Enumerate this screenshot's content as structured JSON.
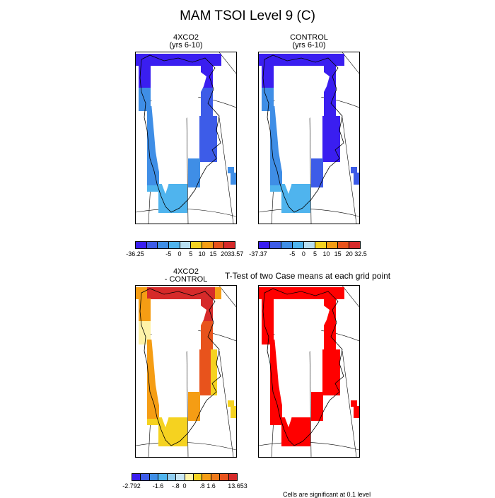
{
  "title": "MAM TSOI Level 9 (C)",
  "panels": {
    "p1": {
      "title_line1": "4XCO2",
      "title_line2": "(yrs 6-10)"
    },
    "p2": {
      "title_line1": "CONTROL",
      "title_line2": "(yrs 6-10)"
    },
    "p3": {
      "title_line1": "4XCO2",
      "title_line2": "- CONTROL"
    },
    "p4": {
      "title": "T-Test of two Case means at each grid point"
    }
  },
  "colorbars": {
    "cb1": {
      "labels": [
        "-36.25",
        "-5",
        "0",
        "5",
        "10",
        "15",
        "20",
        "33.57"
      ]
    },
    "cb2": {
      "labels": [
        "-37.37",
        "-5",
        "0",
        "5",
        "10",
        "15",
        "20",
        "32.5"
      ]
    },
    "cb3": {
      "labels": [
        "-2.792",
        "-1.6",
        "-.8",
        "0",
        ".8",
        "1.6",
        "13.653"
      ]
    }
  },
  "footnote": "Cells are significant at 0.1 level",
  "colors": {
    "abs_palette": [
      "#3a1ef0",
      "#3d5ce8",
      "#3f8ee6",
      "#4fb4ee",
      "#b7def0",
      "#f5d220",
      "#f59d14",
      "#e8531c",
      "#d62a2a"
    ],
    "diff_palette": [
      "#3a1ef0",
      "#3d5ce8",
      "#3f8ee6",
      "#4fb4ee",
      "#8fcdf0",
      "#c8e6f4",
      "#fff3a8",
      "#f5d220",
      "#f59d14",
      "#ee7a1a",
      "#e8531c",
      "#d62a2a"
    ],
    "ttest_red": "#ff0000",
    "background": "#ffffff"
  },
  "chart_data": [
    {
      "type": "heatmap",
      "title": "4XCO2 (yrs 6-10)",
      "variable": "TSOI Level 9",
      "units": "C",
      "season": "MAM",
      "colorbar_ticks": [
        -36.25,
        -5,
        0,
        5,
        10,
        15,
        20,
        33.57
      ],
      "region_values": {
        "north": -36,
        "coast": -33,
        "east_mid": -30,
        "east_lower": -20,
        "west_mid": -15,
        "south": -10
      }
    },
    {
      "type": "heatmap",
      "title": "CONTROL (yrs 6-10)",
      "variable": "TSOI Level 9",
      "units": "C",
      "season": "MAM",
      "colorbar_ticks": [
        -37.37,
        -5,
        0,
        5,
        10,
        15,
        20,
        32.5
      ],
      "region_values": {
        "north": -37,
        "coast": -34,
        "east_mid": -31,
        "east_lower": -22,
        "west_mid": -16,
        "south": -11
      }
    },
    {
      "type": "heatmap",
      "title": "4XCO2 - CONTROL",
      "variable": "TSOI Level 9",
      "units": "C",
      "season": "MAM",
      "colorbar_ticks": [
        -2.792,
        -1.6,
        -0.8,
        0,
        0.8,
        1.6,
        13.653
      ],
      "region_values": {
        "north": 2.4,
        "coast": 2.0,
        "east_mid": 1.8,
        "east_lower": 1.0,
        "west_mid": 0.9,
        "south": 0.6
      }
    },
    {
      "type": "heatmap",
      "title": "T-Test of two Case means at each grid point",
      "significance_level": 0.1,
      "note": "Cells are significant at 0.1 level"
    }
  ]
}
